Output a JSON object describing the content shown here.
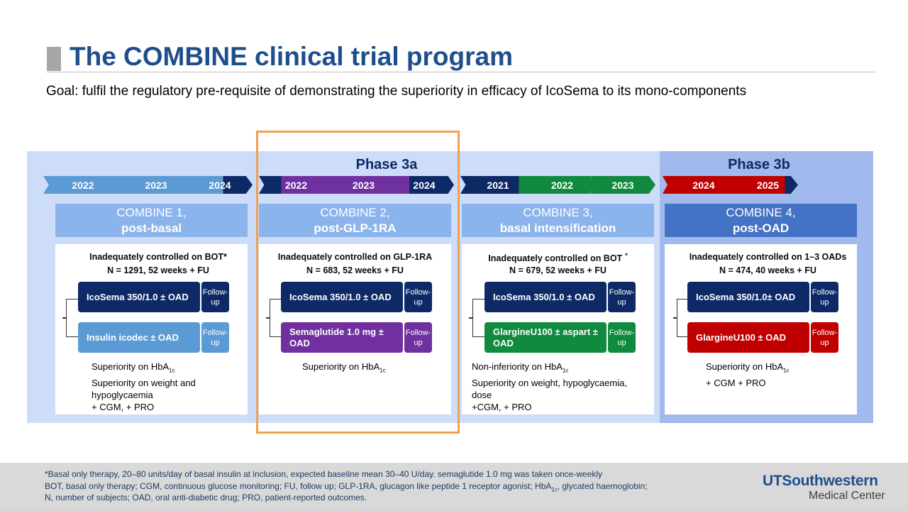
{
  "title": "The COMBINE clinical trial program",
  "goal": "Goal: fulfil the regulatory pre-requisite of demonstrating the superiority in efficacy of IcoSema to its mono-components",
  "phases": {
    "phase3a": "Phase 3a",
    "phase3b": "Phase 3b"
  },
  "colors": {
    "light_blue": "#5b9bd5",
    "navy": "#0e2a66",
    "purple": "#7030a0",
    "green": "#108a3e",
    "red": "#c00000",
    "highlight": "#f0a050"
  },
  "timelines": {
    "combine1": [
      "2022",
      "2023",
      "2024"
    ],
    "combine2": [
      "2022",
      "2023",
      "2024"
    ],
    "combine3": [
      "2021",
      "2022",
      "2023"
    ],
    "combine4": [
      "2024",
      "2025"
    ]
  },
  "trials": [
    {
      "name": "COMBINE 1,",
      "subtitle": "post-basal",
      "population": "Inadequately controlled on BOT*",
      "n": "N = 1291, 52 weeks + FU",
      "arm1": "IcoSema 350/1.0 ± OAD",
      "arm2": "Insulin icodec ± OAD",
      "followup": "Follow-up",
      "outcomes": [
        "Superiority on HbA",
        "Superiority on weight and",
        "hypoglycaemia",
        "+ CGM, + PRO"
      ]
    },
    {
      "name": "COMBINE 2,",
      "subtitle": "post-GLP-1RA",
      "population": "Inadequately controlled on GLP-1RA",
      "n": "N = 683, 52 weeks + FU",
      "arm1": "IcoSema 350/1.0 ± OAD",
      "arm2": "Semaglutide 1.0 mg ± OAD",
      "followup": "Follow-up",
      "outcomes": [
        "Superiority on HbA"
      ]
    },
    {
      "name": "COMBINE 3,",
      "subtitle": "basal intensification",
      "population": "Inadequately controlled on BOT",
      "asterisk": "*",
      "n": "N = 679, 52 weeks + FU",
      "arm1": "IcoSema 350/1.0 ± OAD",
      "arm2": "GlargineU100 ± aspart ± OAD",
      "followup": "Follow-up",
      "outcomes": [
        "Non-inferiority on HbA",
        "Superiority on weight, hypoglycaemia,",
        "dose",
        "+CGM, + PRO"
      ]
    },
    {
      "name": "COMBINE 4,",
      "subtitle": "post-OAD",
      "population": "Inadequately controlled on 1–3 OADs",
      "n": "N = 474, 40 weeks + FU",
      "arm1": "IcoSema 350/1.0± OAD",
      "arm2": "GlargineU100 ± OAD",
      "followup": "Follow-up",
      "outcomes": [
        "Superiority on HbA",
        "+ CGM + PRO"
      ]
    }
  ],
  "subscript_1c": "1c",
  "footnotes": {
    "line1": "*Basal only therapy, 20–80 units/day of basal insulin at inclusion, expected baseline mean 30–40 U/day. semaglutide 1.0 mg was taken once-weekly",
    "line2a": "BOT, basal only therapy; CGM, continuous glucose monitoring; FU, follow up; GLP-1RA, glucagon like peptide 1 receptor agonist; HbA",
    "line2b": ", glycated haemoglobin;",
    "line3": "N, number of subjects; OAD, oral anti-diabetic drug; PRO, patient-reported outcomes."
  },
  "logo": {
    "line1": "UTSouthwestern",
    "line2": "Medical Center"
  }
}
